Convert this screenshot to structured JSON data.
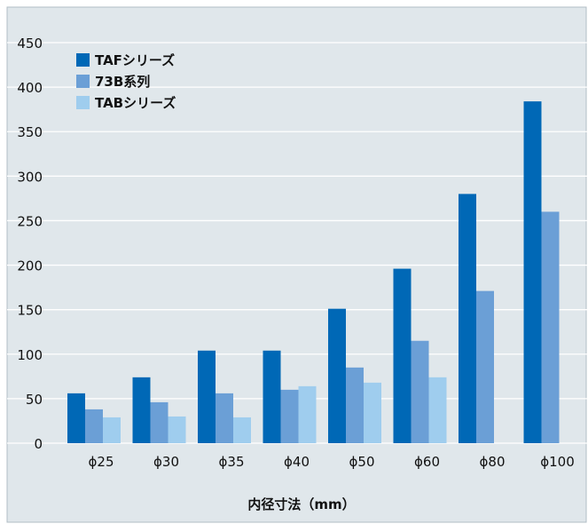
{
  "chart_data": {
    "type": "bar",
    "xlabel": "内径寸法（mm）",
    "ylabel": "",
    "ylim": [
      0,
      450
    ],
    "yticks": [
      "0",
      "50",
      "100",
      "150",
      "200",
      "250",
      "300",
      "350",
      "400",
      "450"
    ],
    "grid": true,
    "legend_position": "top-left",
    "categories": [
      "ϕ25",
      "ϕ30",
      "ϕ35",
      "ϕ40",
      "ϕ50",
      "ϕ60",
      "ϕ80",
      "ϕ100"
    ],
    "series": [
      {
        "name": "TAFシリーズ",
        "color": "#0068b6",
        "values": [
          56,
          74,
          104,
          104,
          151,
          196,
          280,
          384
        ]
      },
      {
        "name": "73B系列",
        "color": "#6b9fd6",
        "values": [
          38,
          46,
          56,
          60,
          85,
          115,
          171,
          260
        ]
      },
      {
        "name": "TABシリーズ",
        "color": "#9fcdee",
        "values": [
          29,
          30,
          29,
          64,
          68,
          74,
          null,
          null
        ]
      }
    ]
  },
  "colors": {
    "background": "#e0e7eb",
    "grid": "#ffffff",
    "frame": "#b0bcc4"
  }
}
